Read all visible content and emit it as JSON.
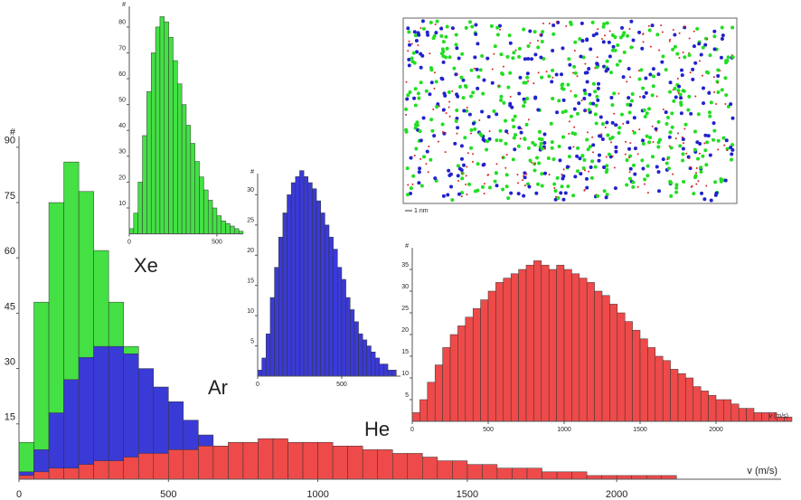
{
  "chart_data": [
    {
      "type": "histogram",
      "x_label": "v (m/s)",
      "y_label": "#",
      "bins": [
        0,
        50,
        100,
        150,
        200,
        250,
        300,
        350,
        400,
        450,
        500,
        550,
        600,
        650,
        700,
        750,
        800,
        850,
        900,
        950,
        1000,
        1050,
        1100,
        1150,
        1200,
        1250,
        1300,
        1350,
        1400,
        1450,
        1500,
        1550,
        1600,
        1650,
        1700,
        1750,
        1800,
        1850,
        1900,
        1950,
        2000,
        2050,
        2100,
        2150,
        2200,
        2250,
        2300,
        2350,
        2400,
        2450,
        2500
      ],
      "series": [
        {
          "name": "Xe",
          "color": "#44e044",
          "values": [
            10,
            48,
            75,
            86,
            78,
            62,
            48,
            36,
            26,
            17,
            11,
            7,
            4,
            2,
            1,
            0,
            0,
            0,
            0,
            0,
            0,
            0,
            0,
            0,
            0,
            0,
            0,
            0,
            0,
            0,
            0,
            0,
            0,
            0,
            0,
            0,
            0,
            0,
            0,
            0,
            0,
            0,
            0,
            0,
            0,
            0,
            0,
            0,
            0,
            0
          ]
        },
        {
          "name": "Ar",
          "color": "#3a3ad6",
          "values": [
            2,
            8,
            18,
            27,
            33,
            36,
            36,
            34,
            30,
            25,
            21,
            16,
            12,
            9,
            6,
            4,
            3,
            2,
            1,
            1,
            0,
            0,
            0,
            0,
            0,
            0,
            0,
            0,
            0,
            0,
            0,
            0,
            0,
            0,
            0,
            0,
            0,
            0,
            0,
            0,
            0,
            0,
            0,
            0,
            0,
            0,
            0,
            0,
            0,
            0
          ]
        },
        {
          "name": "He",
          "color": "#ee4a4a",
          "values": [
            1,
            2,
            3,
            3,
            4,
            5,
            5,
            6,
            7,
            7,
            8,
            8,
            9,
            9,
            10,
            10,
            11,
            11,
            10,
            10,
            10,
            9,
            9,
            8,
            8,
            7,
            7,
            6,
            5,
            5,
            4,
            4,
            3,
            3,
            3,
            2,
            2,
            2,
            1,
            1,
            1,
            1,
            1,
            1,
            0,
            0,
            0,
            0,
            0,
            0
          ]
        }
      ],
      "xlim": [
        0,
        2550
      ],
      "xticks": [
        0,
        500,
        1000,
        1500,
        2000
      ],
      "ylim": [
        0,
        93
      ],
      "yticks": [
        15,
        30,
        45,
        60,
        75,
        90
      ]
    },
    {
      "type": "histogram",
      "y_label": "#",
      "color": "#44e044",
      "bins": [
        0,
        25,
        50,
        75,
        100,
        125,
        150,
        175,
        200,
        225,
        250,
        275,
        300,
        325,
        350,
        375,
        400,
        425,
        450,
        475,
        500,
        525,
        550,
        575,
        600,
        625,
        650
      ],
      "values": [
        2,
        8,
        20,
        38,
        55,
        70,
        80,
        84,
        82,
        76,
        67,
        58,
        50,
        42,
        35,
        28,
        22,
        17,
        13,
        10,
        7,
        5,
        4,
        3,
        2,
        1
      ],
      "xlim": [
        0,
        650
      ],
      "xticks": [
        0,
        500
      ],
      "ylim": [
        0,
        88
      ],
      "yticks": [
        10,
        20,
        30,
        40,
        50,
        60,
        70,
        80
      ]
    },
    {
      "type": "histogram",
      "y_label": "#",
      "color": "#3a3ad6",
      "bins": [
        0,
        25,
        50,
        75,
        100,
        125,
        150,
        175,
        200,
        225,
        250,
        275,
        300,
        325,
        350,
        375,
        400,
        425,
        450,
        475,
        500,
        525,
        550,
        575,
        600,
        625,
        650,
        675,
        700,
        725,
        750,
        775,
        800,
        825
      ],
      "values": [
        1,
        3,
        7,
        13,
        18,
        23,
        27,
        30,
        32,
        33,
        34,
        33,
        32,
        31,
        29,
        27,
        25,
        23,
        21,
        18,
        16,
        13,
        11,
        9,
        7,
        6,
        5,
        4,
        3,
        2,
        2,
        1,
        1
      ],
      "xlim": [
        0,
        850
      ],
      "xticks": [
        0,
        500
      ],
      "ylim": [
        0,
        33.5
      ],
      "yticks": [
        5,
        10,
        15,
        20,
        25,
        30
      ]
    },
    {
      "type": "histogram",
      "x_label": "v (m/s)",
      "y_label": "#",
      "color": "#ee4a4a",
      "bins": [
        0,
        50,
        100,
        150,
        200,
        250,
        300,
        350,
        400,
        450,
        500,
        550,
        600,
        650,
        700,
        750,
        800,
        850,
        900,
        950,
        1000,
        1050,
        1100,
        1150,
        1200,
        1250,
        1300,
        1350,
        1400,
        1450,
        1500,
        1550,
        1600,
        1650,
        1700,
        1750,
        1800,
        1850,
        1900,
        1950,
        2000,
        2050,
        2100,
        2150,
        2200,
        2250,
        2300,
        2350,
        2400,
        2450,
        2500
      ],
      "values": [
        2,
        5,
        9,
        13,
        17,
        20,
        22,
        24,
        26,
        28,
        30,
        32,
        33,
        34,
        35,
        36,
        37,
        36,
        35,
        36,
        35,
        34,
        33,
        32,
        30,
        29,
        27,
        25,
        23,
        21,
        19,
        17,
        15,
        14,
        12,
        11,
        10,
        8,
        7,
        6,
        5,
        5,
        4,
        3,
        3,
        2,
        2,
        2,
        1,
        1
      ],
      "xlim": [
        0,
        2500
      ],
      "xticks": [
        0,
        500,
        1000,
        1500,
        2000
      ],
      "ylim": [
        0,
        40
      ],
      "yticks": [
        5,
        10,
        15,
        20,
        25,
        30,
        35
      ]
    }
  ],
  "simulation_box": {
    "scale_label": "1 nm"
  }
}
